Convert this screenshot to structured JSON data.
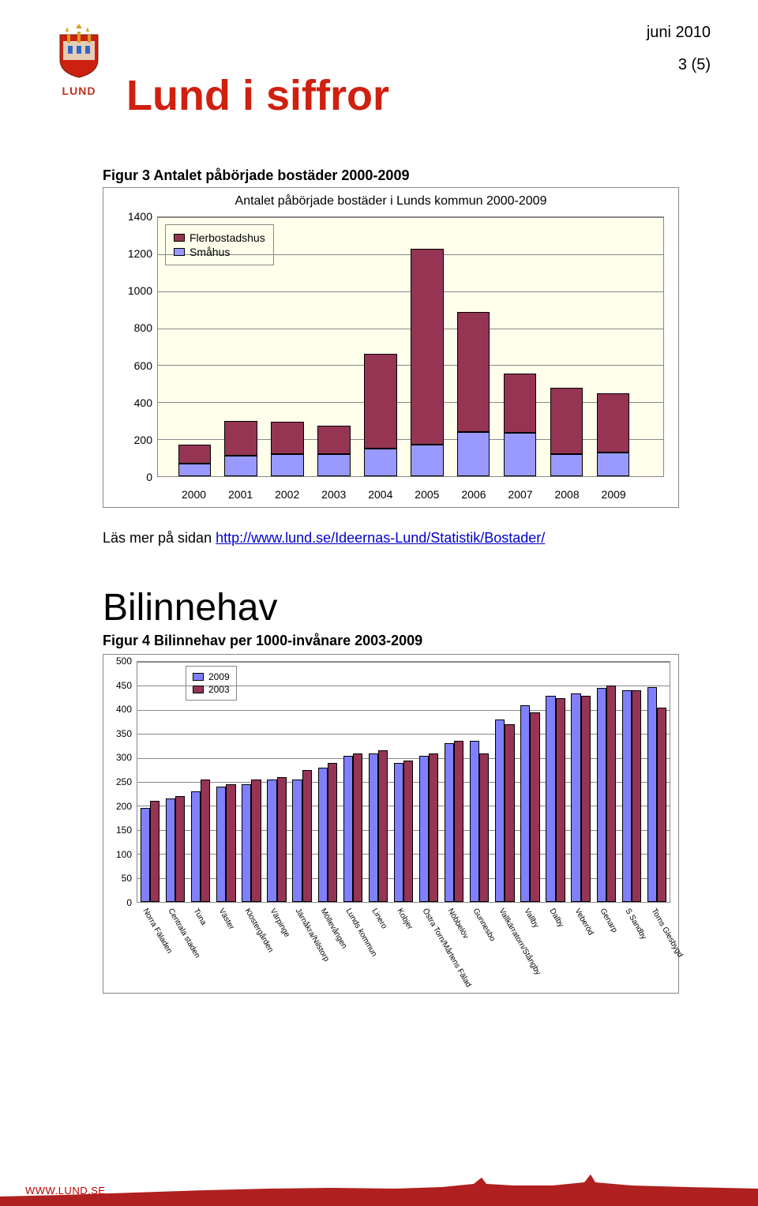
{
  "meta": {
    "date": "juni 2010",
    "page": "3 (5)",
    "logo_label": "LUND",
    "title": "Lund i siffror"
  },
  "chart1": {
    "caption": "Figur 3 Antalet påbörjade bostäder 2000-2009",
    "title": "Antalet påbörjade bostäder i Lunds kommun 2000-2009",
    "type": "stacked-bar",
    "background_color": "#ffffec",
    "grid_color": "#888888",
    "ylim": [
      0,
      1400
    ],
    "ytick_step": 200,
    "categories": [
      "2000",
      "2001",
      "2002",
      "2003",
      "2004",
      "2005",
      "2006",
      "2007",
      "2008",
      "2009"
    ],
    "series": [
      {
        "name": "Flerbostadshus",
        "color": "#953553",
        "values": [
          100,
          190,
          175,
          155,
          510,
          1060,
          650,
          320,
          360,
          320
        ]
      },
      {
        "name": "Småhus",
        "color": "#9999ff",
        "values": [
          70,
          110,
          120,
          120,
          150,
          170,
          240,
          235,
          120,
          130
        ]
      }
    ]
  },
  "linkline": {
    "prefix": "Läs mer på sidan ",
    "url_text": "http://www.lund.se/Ideernas-Lund/Statistik/Bostader/"
  },
  "section2": {
    "heading": "Bilinnehav",
    "caption": "Figur 4 Bilinnehav per 1000-invånare 2003-2009"
  },
  "chart2": {
    "type": "grouped-bar",
    "background_color": "#ffffff",
    "grid_color": "#888888",
    "ylim": [
      0,
      500
    ],
    "ytick_step": 50,
    "categories": [
      "Norra Fäladen",
      "Centrala staden",
      "Tuna",
      "Väster",
      "Klostergården",
      "Värpinge",
      "Järnåkra/Nilstorp",
      "Möllevången",
      "Lunds kommun",
      "Linero",
      "Kobjer",
      "Östra Torn/Mårtens Fälad",
      "Nöbbelöv",
      "Gunnesbo",
      "Vallkärratorn/Stångby",
      "Vallby",
      "Dalby",
      "Veberöd",
      "Genarp",
      "S Sandby",
      "Torns Glesbygd"
    ],
    "series": [
      {
        "name": "2009",
        "color": "#8080ff",
        "values": [
          195,
          215,
          230,
          240,
          245,
          255,
          255,
          280,
          305,
          310,
          290,
          305,
          330,
          335,
          380,
          410,
          430,
          435,
          445,
          440,
          448
        ]
      },
      {
        "name": "2003",
        "color": "#953553",
        "values": [
          210,
          220,
          255,
          245,
          255,
          260,
          275,
          290,
          310,
          315,
          295,
          310,
          335,
          310,
          370,
          395,
          425,
          430,
          450,
          440,
          405
        ]
      }
    ]
  },
  "footer": {
    "url": "WWW.LUND.SE"
  },
  "colors": {
    "title_red": "#d02010",
    "logo_red": "#c03020",
    "link_blue": "#0000cc",
    "footer_red": "#c00000",
    "skyline_red": "#b02020"
  }
}
